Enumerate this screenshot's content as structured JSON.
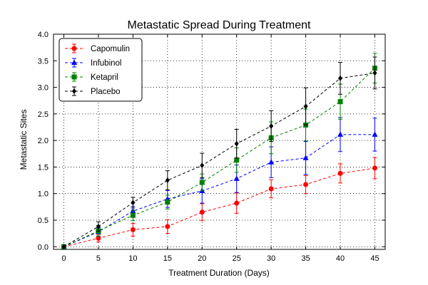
{
  "chart_data": {
    "type": "line",
    "title": "Metastatic Spread During Treatment",
    "xlabel": "Treatment Duration (Days)",
    "ylabel": "Metastatic Sites",
    "x": [
      0,
      5,
      10,
      15,
      20,
      25,
      30,
      35,
      40,
      45
    ],
    "xlim": [
      -1.5,
      46.5
    ],
    "ylim": [
      -0.05,
      4.0
    ],
    "xticks": [
      "0",
      "5",
      "10",
      "15",
      "20",
      "25",
      "30",
      "35",
      "40",
      "45"
    ],
    "yticks": [
      "0.0",
      "0.5",
      "1.0",
      "1.5",
      "2.0",
      "2.5",
      "3.0",
      "3.5",
      "4.0"
    ],
    "grid": true,
    "legend_position": "top-left",
    "series": [
      {
        "name": "Capomulin",
        "color": "#ff0000",
        "marker": "circle",
        "values": [
          0.0,
          0.16,
          0.32,
          0.38,
          0.65,
          0.82,
          1.09,
          1.17,
          1.38,
          1.48
        ],
        "errors": [
          0.0,
          0.07,
          0.12,
          0.13,
          0.16,
          0.19,
          0.17,
          0.17,
          0.18,
          0.2
        ]
      },
      {
        "name": "Infubinol",
        "color": "#0000ff",
        "marker": "triangle",
        "values": [
          0.0,
          0.28,
          0.67,
          0.9,
          1.05,
          1.28,
          1.59,
          1.67,
          2.11,
          2.11
        ],
        "errors": [
          0.0,
          0.08,
          0.09,
          0.16,
          0.23,
          0.26,
          0.29,
          0.31,
          0.32,
          0.31
        ]
      },
      {
        "name": "Ketapril",
        "color": "#008000",
        "marker": "square",
        "values": [
          0.0,
          0.3,
          0.59,
          0.84,
          1.21,
          1.63,
          2.05,
          2.29,
          2.73,
          3.36
        ],
        "errors": [
          0.0,
          0.1,
          0.1,
          0.13,
          0.16,
          0.23,
          0.3,
          0.3,
          0.33,
          0.28
        ]
      },
      {
        "name": "Placebo",
        "color": "#000000",
        "marker": "diamond",
        "values": [
          0.0,
          0.38,
          0.83,
          1.25,
          1.53,
          1.94,
          2.27,
          2.64,
          3.17,
          3.27
        ],
        "errors": [
          0.0,
          0.09,
          0.1,
          0.18,
          0.23,
          0.27,
          0.29,
          0.35,
          0.3,
          0.3
        ]
      }
    ]
  }
}
